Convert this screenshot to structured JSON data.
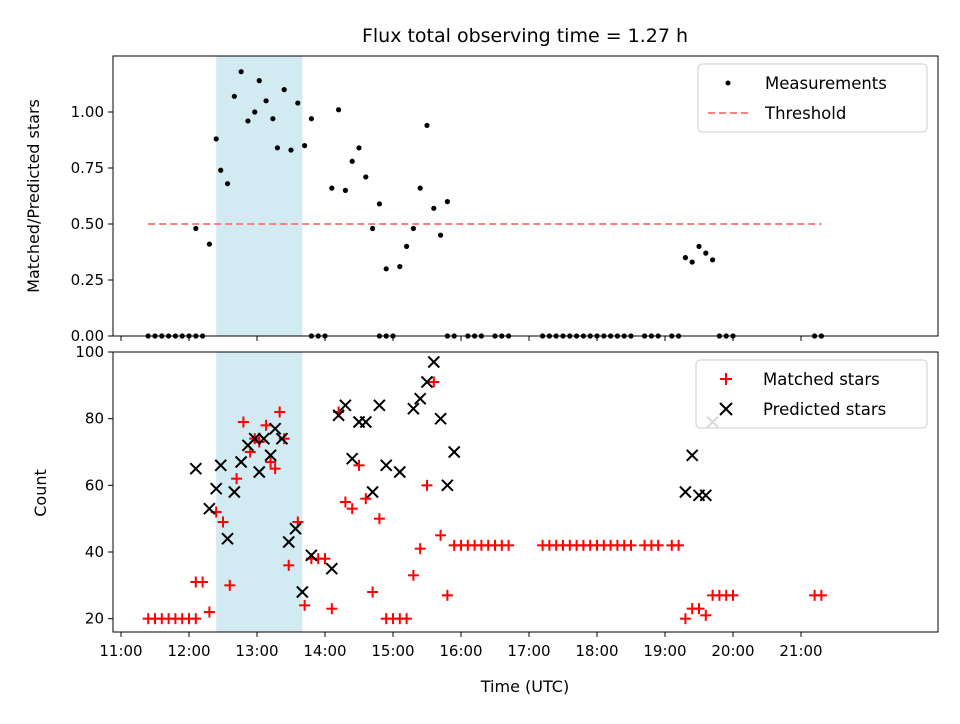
{
  "title": "Flux total observing time = 1.27 h",
  "highlight_color": "#add8e6",
  "chart_data": [
    {
      "type": "scatter",
      "panel": "top",
      "ylabel": "Matched/Predicted stars",
      "ylim": [
        0,
        1.25
      ],
      "yticks": [
        0.0,
        0.25,
        0.5,
        0.75,
        1.0
      ],
      "ytick_labels": [
        "0.00",
        "0.25",
        "0.50",
        "0.75",
        "1.00"
      ],
      "legend_position": "top-right",
      "highlight_span": [
        "12:24",
        "13:40"
      ],
      "series": [
        {
          "name": "Measurements",
          "color": "#000000",
          "marker": "dot",
          "points": [
            [
              "11:24",
              0
            ],
            [
              "11:30",
              0
            ],
            [
              "11:36",
              0
            ],
            [
              "11:42",
              0
            ],
            [
              "11:48",
              0
            ],
            [
              "11:54",
              0
            ],
            [
              "12:00",
              0
            ],
            [
              "12:06",
              0
            ],
            [
              "12:12",
              0
            ],
            [
              "12:06",
              0.48
            ],
            [
              "12:18",
              0.41
            ],
            [
              "12:24",
              0.88
            ],
            [
              "12:28",
              0.74
            ],
            [
              "12:34",
              0.68
            ],
            [
              "12:40",
              1.07
            ],
            [
              "12:46",
              1.18
            ],
            [
              "12:52",
              0.96
            ],
            [
              "12:58",
              1.0
            ],
            [
              "13:02",
              1.14
            ],
            [
              "13:08",
              1.05
            ],
            [
              "13:14",
              0.97
            ],
            [
              "13:18",
              0.84
            ],
            [
              "13:24",
              1.1
            ],
            [
              "13:30",
              0.83
            ],
            [
              "13:36",
              1.04
            ],
            [
              "13:42",
              0.85
            ],
            [
              "13:48",
              0.97
            ],
            [
              "13:48",
              0
            ],
            [
              "13:54",
              0
            ],
            [
              "14:00",
              0
            ],
            [
              "14:06",
              0.66
            ],
            [
              "14:12",
              1.01
            ],
            [
              "14:18",
              0.65
            ],
            [
              "14:24",
              0.78
            ],
            [
              "14:30",
              0.84
            ],
            [
              "14:36",
              0.71
            ],
            [
              "14:42",
              0.48
            ],
            [
              "14:48",
              0.59
            ],
            [
              "14:54",
              0.3
            ],
            [
              "14:48",
              0
            ],
            [
              "14:54",
              0
            ],
            [
              "15:00",
              0
            ],
            [
              "15:06",
              0.31
            ],
            [
              "15:12",
              0.4
            ],
            [
              "15:18",
              0.48
            ],
            [
              "15:24",
              0.66
            ],
            [
              "15:30",
              0.94
            ],
            [
              "15:36",
              0.57
            ],
            [
              "15:42",
              0.45
            ],
            [
              "15:48",
              0.6
            ],
            [
              "15:48",
              0
            ],
            [
              "15:54",
              0
            ],
            [
              "16:06",
              0
            ],
            [
              "16:12",
              0
            ],
            [
              "16:18",
              0
            ],
            [
              "16:30",
              0
            ],
            [
              "16:36",
              0
            ],
            [
              "16:42",
              0
            ],
            [
              "17:12",
              0
            ],
            [
              "17:18",
              0
            ],
            [
              "17:24",
              0
            ],
            [
              "17:30",
              0
            ],
            [
              "17:36",
              0
            ],
            [
              "17:42",
              0
            ],
            [
              "17:48",
              0
            ],
            [
              "17:54",
              0
            ],
            [
              "18:00",
              0
            ],
            [
              "18:06",
              0
            ],
            [
              "18:12",
              0
            ],
            [
              "18:18",
              0
            ],
            [
              "18:24",
              0
            ],
            [
              "18:30",
              0
            ],
            [
              "18:42",
              0
            ],
            [
              "18:48",
              0
            ],
            [
              "18:54",
              0
            ],
            [
              "19:06",
              0
            ],
            [
              "19:12",
              0
            ],
            [
              "19:18",
              0.35
            ],
            [
              "19:24",
              0.33
            ],
            [
              "19:30",
              0.4
            ],
            [
              "19:36",
              0.37
            ],
            [
              "19:42",
              0.34
            ],
            [
              "19:48",
              0
            ],
            [
              "19:54",
              0
            ],
            [
              "20:00",
              0
            ],
            [
              "21:12",
              0
            ],
            [
              "21:18",
              0
            ]
          ]
        },
        {
          "name": "Threshold",
          "color": "#ff7f7f",
          "marker": "dashed-line",
          "x": [
            "11:24",
            "21:18"
          ],
          "y": [
            0.5,
            0.5
          ]
        }
      ]
    },
    {
      "type": "scatter",
      "panel": "bottom",
      "xlabel": "Time (UTC)",
      "ylabel": "Count",
      "ylim": [
        16,
        100
      ],
      "yticks": [
        20,
        40,
        60,
        80,
        100
      ],
      "xticks": [
        "11:00",
        "12:00",
        "13:00",
        "14:00",
        "15:00",
        "16:00",
        "17:00",
        "18:00",
        "19:00",
        "20:00",
        "21:00"
      ],
      "legend_position": "top-right",
      "highlight_span": [
        "12:24",
        "13:40"
      ],
      "series": [
        {
          "name": "Matched stars",
          "color": "#ff0000",
          "marker": "plus",
          "points": [
            [
              "11:24",
              20
            ],
            [
              "11:30",
              20
            ],
            [
              "11:36",
              20
            ],
            [
              "11:42",
              20
            ],
            [
              "11:48",
              20
            ],
            [
              "11:54",
              20
            ],
            [
              "12:00",
              20
            ],
            [
              "12:06",
              20
            ],
            [
              "12:06",
              31
            ],
            [
              "12:12",
              31
            ],
            [
              "12:18",
              22
            ],
            [
              "12:24",
              52
            ],
            [
              "12:30",
              49
            ],
            [
              "12:36",
              30
            ],
            [
              "12:42",
              62
            ],
            [
              "12:48",
              79
            ],
            [
              "12:54",
              70
            ],
            [
              "12:58",
              74
            ],
            [
              "13:02",
              73
            ],
            [
              "13:08",
              78
            ],
            [
              "13:12",
              67
            ],
            [
              "13:16",
              65
            ],
            [
              "13:20",
              82
            ],
            [
              "13:24",
              74
            ],
            [
              "13:28",
              36
            ],
            [
              "13:36",
              49
            ],
            [
              "13:42",
              24
            ],
            [
              "13:48",
              38
            ],
            [
              "13:54",
              38
            ],
            [
              "14:00",
              38
            ],
            [
              "14:06",
              23
            ],
            [
              "14:12",
              82
            ],
            [
              "14:18",
              55
            ],
            [
              "14:24",
              53
            ],
            [
              "14:30",
              66
            ],
            [
              "14:36",
              56
            ],
            [
              "14:42",
              28
            ],
            [
              "14:48",
              50
            ],
            [
              "14:54",
              20
            ],
            [
              "15:00",
              20
            ],
            [
              "15:06",
              20
            ],
            [
              "15:12",
              20
            ],
            [
              "15:18",
              33
            ],
            [
              "15:24",
              41
            ],
            [
              "15:30",
              60
            ],
            [
              "15:36",
              91
            ],
            [
              "15:42",
              45
            ],
            [
              "15:48",
              27
            ],
            [
              "15:54",
              42
            ],
            [
              "16:00",
              42
            ],
            [
              "16:06",
              42
            ],
            [
              "16:12",
              42
            ],
            [
              "16:18",
              42
            ],
            [
              "16:24",
              42
            ],
            [
              "16:30",
              42
            ],
            [
              "16:36",
              42
            ],
            [
              "16:42",
              42
            ],
            [
              "17:12",
              42
            ],
            [
              "17:18",
              42
            ],
            [
              "17:24",
              42
            ],
            [
              "17:30",
              42
            ],
            [
              "17:36",
              42
            ],
            [
              "17:42",
              42
            ],
            [
              "17:48",
              42
            ],
            [
              "17:54",
              42
            ],
            [
              "18:00",
              42
            ],
            [
              "18:06",
              42
            ],
            [
              "18:12",
              42
            ],
            [
              "18:18",
              42
            ],
            [
              "18:24",
              42
            ],
            [
              "18:30",
              42
            ],
            [
              "18:42",
              42
            ],
            [
              "18:48",
              42
            ],
            [
              "18:54",
              42
            ],
            [
              "19:06",
              42
            ],
            [
              "19:12",
              42
            ],
            [
              "19:18",
              20
            ],
            [
              "19:24",
              23
            ],
            [
              "19:30",
              23
            ],
            [
              "19:36",
              21
            ],
            [
              "19:42",
              27
            ],
            [
              "19:48",
              27
            ],
            [
              "19:54",
              27
            ],
            [
              "20:00",
              27
            ],
            [
              "21:12",
              27
            ],
            [
              "21:18",
              27
            ]
          ]
        },
        {
          "name": "Predicted stars",
          "color": "#000000",
          "marker": "x",
          "points": [
            [
              "12:06",
              65
            ],
            [
              "12:18",
              53
            ],
            [
              "12:24",
              59
            ],
            [
              "12:28",
              66
            ],
            [
              "12:34",
              44
            ],
            [
              "12:40",
              58
            ],
            [
              "12:46",
              67
            ],
            [
              "12:52",
              72
            ],
            [
              "12:58",
              74
            ],
            [
              "13:02",
              64
            ],
            [
              "13:06",
              74
            ],
            [
              "13:12",
              69
            ],
            [
              "13:16",
              77
            ],
            [
              "13:22",
              74
            ],
            [
              "13:28",
              43
            ],
            [
              "13:34",
              47
            ],
            [
              "13:40",
              28
            ],
            [
              "13:48",
              39
            ],
            [
              "14:06",
              35
            ],
            [
              "14:12",
              81
            ],
            [
              "14:18",
              84
            ],
            [
              "14:24",
              68
            ],
            [
              "14:30",
              79
            ],
            [
              "14:36",
              79
            ],
            [
              "14:42",
              58
            ],
            [
              "14:48",
              84
            ],
            [
              "14:54",
              66
            ],
            [
              "15:06",
              64
            ],
            [
              "15:18",
              83
            ],
            [
              "15:24",
              86
            ],
            [
              "15:30",
              91
            ],
            [
              "15:36",
              97
            ],
            [
              "15:42",
              80
            ],
            [
              "15:48",
              60
            ],
            [
              "15:54",
              70
            ],
            [
              "19:18",
              58
            ],
            [
              "19:24",
              69
            ],
            [
              "19:30",
              57
            ],
            [
              "19:36",
              57
            ],
            [
              "19:42",
              79
            ]
          ]
        }
      ]
    }
  ]
}
